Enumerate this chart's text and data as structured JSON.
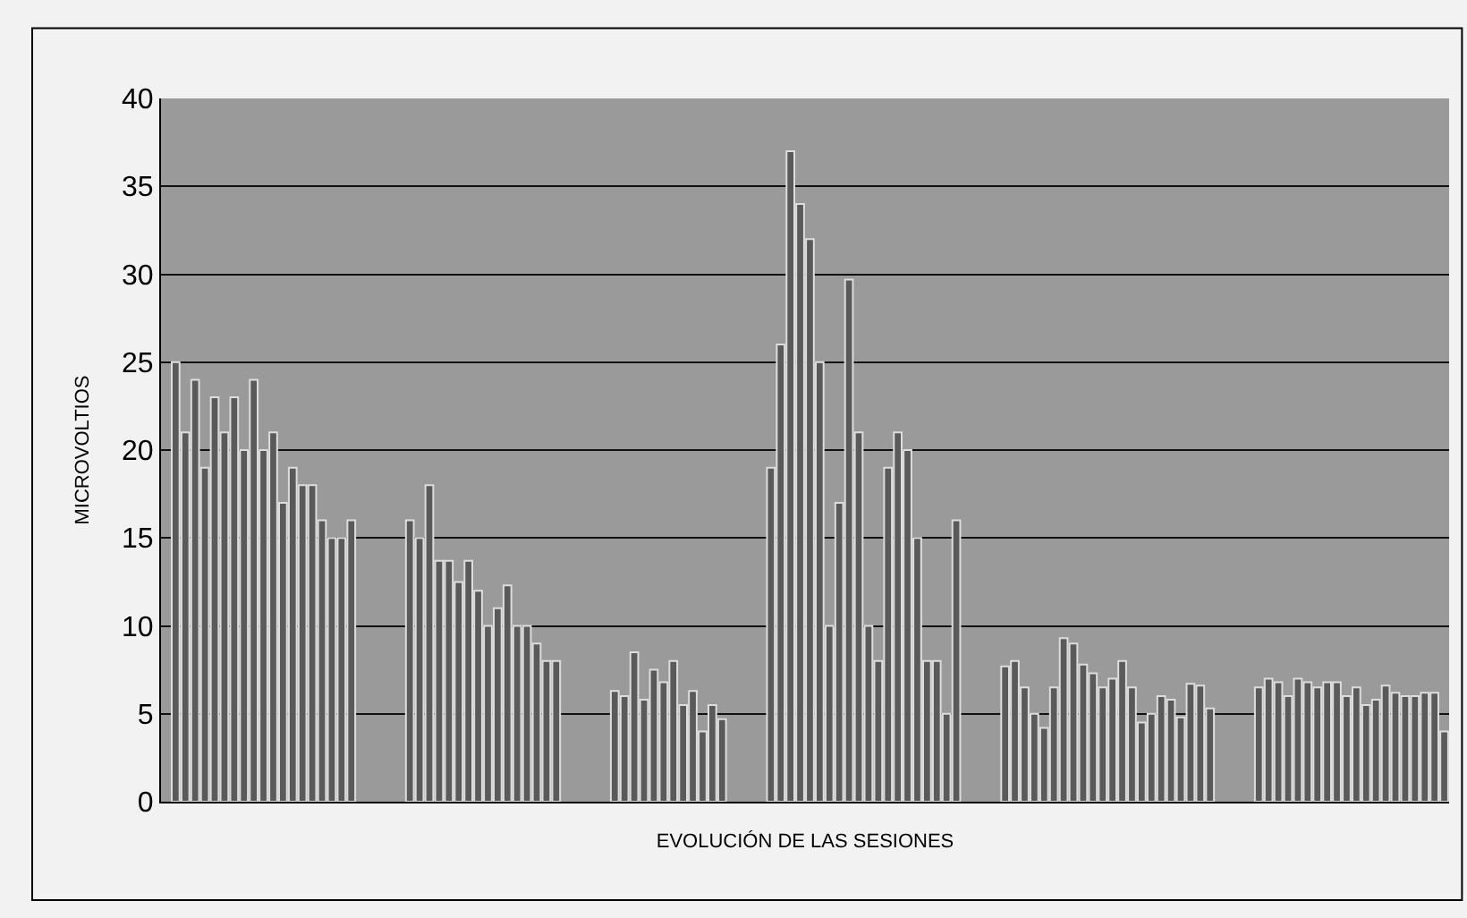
{
  "chart_data": {
    "type": "bar",
    "xlabel": "EVOLUCIÓN DE LAS SESIONES",
    "ylabel": "MICROVOLTIOS",
    "categories": [
      null,
      null,
      null,
      null,
      null,
      null,
      null,
      null,
      null,
      null,
      null,
      null,
      null,
      null,
      null,
      null,
      null,
      null,
      null,
      null,
      null,
      null,
      null,
      null,
      null,
      null,
      null,
      null,
      null,
      null,
      null,
      null,
      null,
      null,
      null,
      null,
      null,
      null,
      null,
      null,
      null,
      null,
      null,
      null,
      null,
      null,
      null,
      null,
      null,
      null,
      null,
      null,
      null,
      null,
      null,
      null,
      null,
      null,
      null,
      null,
      null,
      null,
      null,
      null,
      null,
      null,
      null,
      null,
      null,
      null,
      null,
      null,
      null,
      null,
      null,
      null,
      null,
      null,
      null,
      null,
      null,
      null,
      null,
      null,
      null,
      null,
      null,
      null,
      null,
      null,
      null,
      null,
      null,
      null,
      null,
      null,
      null,
      null,
      null,
      null,
      null,
      null,
      null,
      null,
      null,
      null,
      null,
      null,
      null,
      null,
      null,
      null,
      null,
      null,
      null,
      null,
      null,
      null,
      null,
      null,
      null,
      null,
      null,
      null,
      null,
      null,
      null,
      null,
      null,
      null,
      null,
      null
    ],
    "values": [
      null,
      25,
      21,
      24,
      19,
      23,
      21,
      23,
      20,
      24,
      20,
      21,
      17,
      19,
      18,
      18,
      16,
      15,
      15,
      16,
      null,
      null,
      null,
      null,
      null,
      16,
      15,
      18,
      13.7,
      13.7,
      12.5,
      13.7,
      12,
      10,
      11,
      12.3,
      10,
      10,
      9,
      8,
      8,
      null,
      null,
      null,
      null,
      null,
      6.3,
      6,
      8.5,
      5.8,
      7.5,
      6.8,
      8,
      5.5,
      6.3,
      4,
      5.5,
      4.7,
      null,
      null,
      null,
      null,
      19,
      26,
      37,
      34,
      32,
      25,
      10,
      17,
      29.7,
      21,
      10,
      8,
      19,
      21,
      20,
      15,
      8,
      8,
      5,
      16,
      null,
      null,
      null,
      null,
      7.7,
      8,
      6.5,
      5,
      4.2,
      6.5,
      9.3,
      9,
      7.8,
      7.3,
      6.5,
      7,
      8,
      6.5,
      4.5,
      5,
      6,
      5.8,
      4.8,
      6.7,
      6.6,
      5.3,
      null,
      null,
      null,
      null,
      6.5,
      7,
      6.8,
      6,
      7,
      6.8,
      6.5,
      6.8,
      6.8,
      6,
      6.5,
      5.5,
      5.8,
      6.6,
      6.2,
      6,
      6,
      6.2,
      6.2,
      4
    ],
    "color": "#5a5a5a",
    "ylim": [
      0,
      40
    ],
    "yticks": [
      0,
      5,
      10,
      15,
      20,
      25,
      30,
      35,
      40
    ],
    "grid": "y"
  }
}
